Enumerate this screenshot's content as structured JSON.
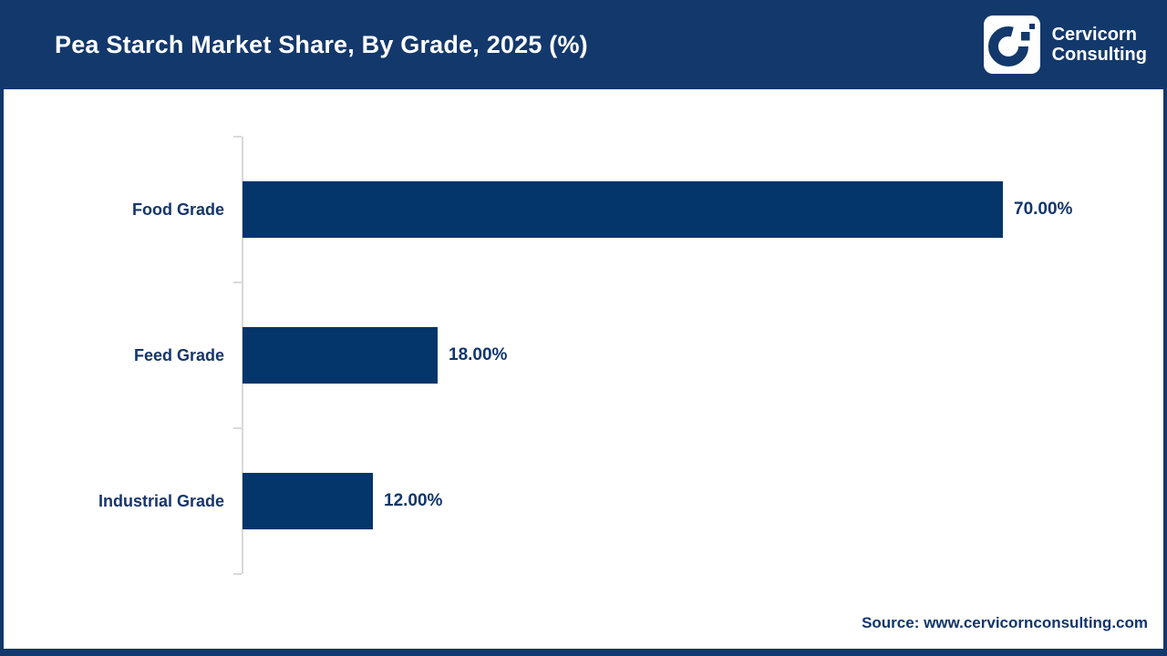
{
  "header": {
    "title": "Pea Starch Market Share, By Grade, 2025 (%)",
    "brand": {
      "name_line1": "Cervicorn",
      "name_line2": "Consulting"
    }
  },
  "chart_data": {
    "type": "bar",
    "orientation": "horizontal",
    "title": "Pea Starch Market Share, By Grade, 2025 (%)",
    "categories": [
      "Food Grade",
      "Feed Grade",
      "Industrial Grade"
    ],
    "values": [
      70.0,
      18.0,
      12.0
    ],
    "value_labels": [
      "70.00%",
      "18.00%",
      "12.00%"
    ],
    "unit": "%",
    "xlabel": "",
    "ylabel": "",
    "grid": false,
    "legend": false,
    "axis_ticks_visible": true
  },
  "footer": {
    "source_text": "Source: www.cervicornconsulting.com"
  },
  "colors": {
    "header_bg": "#13386B",
    "frame_border": "#13386B",
    "bar": "#04356B",
    "text_navy": "#16356B",
    "axis": "#D9D9D9",
    "title_text": "#FFFFFF"
  }
}
